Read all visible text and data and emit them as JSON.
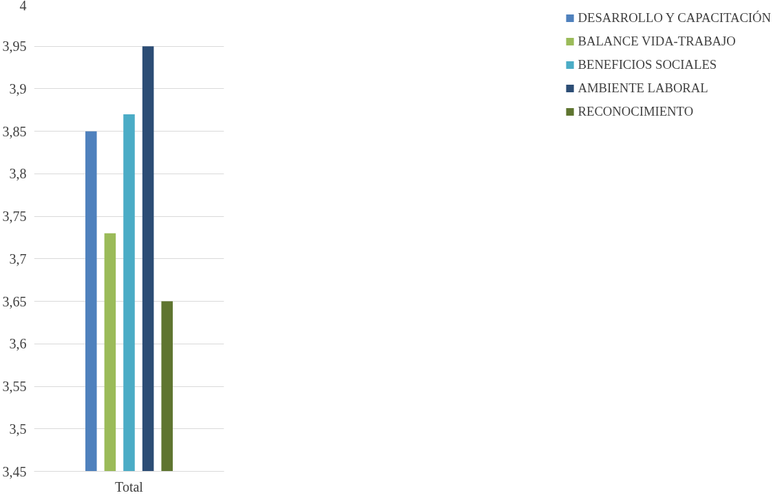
{
  "chart_data": {
    "type": "bar",
    "categories": [
      "Total"
    ],
    "series": [
      {
        "name": "DESARROLLO Y CAPACITACIÓN",
        "color": "#4f81bd",
        "values": [
          3.85
        ]
      },
      {
        "name": "BALANCE VIDA-TRABAJO",
        "color": "#9bbb59",
        "values": [
          3.73
        ]
      },
      {
        "name": "BENEFICIOS SOCIALES",
        "color": "#4bacc6",
        "values": [
          3.87
        ]
      },
      {
        "name": "AMBIENTE LABORAL",
        "color": "#2c4d75",
        "values": [
          3.95
        ]
      },
      {
        "name": "RECONOCIMIENTO",
        "color": "#5f7530",
        "values": [
          3.65
        ]
      }
    ],
    "ylim": [
      3.45,
      4
    ],
    "yticks": [
      {
        "value": 3.45,
        "label": "3,45"
      },
      {
        "value": 3.5,
        "label": "3,5"
      },
      {
        "value": 3.55,
        "label": "3,55"
      },
      {
        "value": 3.6,
        "label": "3,6"
      },
      {
        "value": 3.65,
        "label": "3,65"
      },
      {
        "value": 3.7,
        "label": "3,7"
      },
      {
        "value": 3.75,
        "label": "3,75"
      },
      {
        "value": 3.8,
        "label": "3,8"
      },
      {
        "value": 3.85,
        "label": "3,85"
      },
      {
        "value": 3.9,
        "label": "3,9"
      },
      {
        "value": 3.95,
        "label": "3,95"
      },
      {
        "value": 4,
        "label": "4"
      }
    ],
    "grid": "y",
    "legend": "right"
  }
}
